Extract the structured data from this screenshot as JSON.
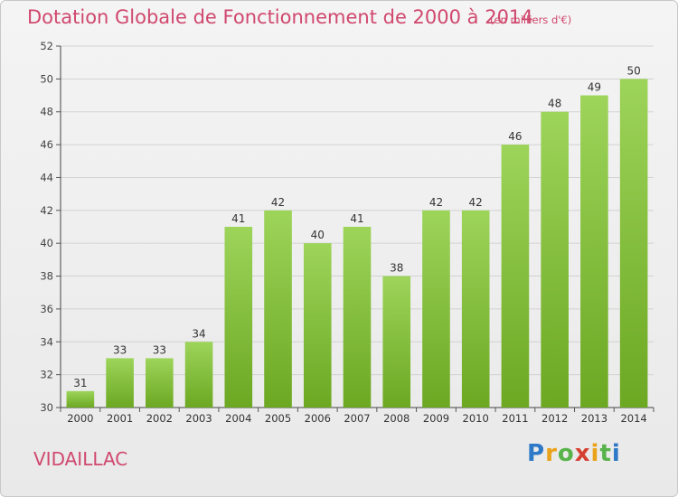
{
  "header": {
    "title": "Dotation Globale de Fonctionnement de 2000 à 2014",
    "subtitle": "(en milliers d'€)"
  },
  "footer": {
    "commune": "VIDAILLAC",
    "brand": "Proxiti"
  },
  "colors": {
    "accent": "#d0486e",
    "bar_light": "#9dd45a",
    "bar_dark": "#6ca822"
  },
  "chart_data": {
    "type": "bar",
    "title": "Dotation Globale de Fonctionnement de 2000 à 2014",
    "subtitle": "(en milliers d'€)",
    "xlabel": "",
    "ylabel": "",
    "categories": [
      "2000",
      "2001",
      "2002",
      "2003",
      "2004",
      "2005",
      "2006",
      "2007",
      "2008",
      "2009",
      "2010",
      "2011",
      "2012",
      "2013",
      "2014"
    ],
    "values": [
      31,
      33,
      33,
      34,
      41,
      42,
      40,
      41,
      38,
      42,
      42,
      46,
      48,
      49,
      50
    ],
    "ylim": [
      30,
      52
    ],
    "yticks": [
      30,
      32,
      34,
      36,
      38,
      40,
      42,
      44,
      46,
      48,
      50,
      52
    ],
    "grid": true,
    "legend": "none"
  }
}
